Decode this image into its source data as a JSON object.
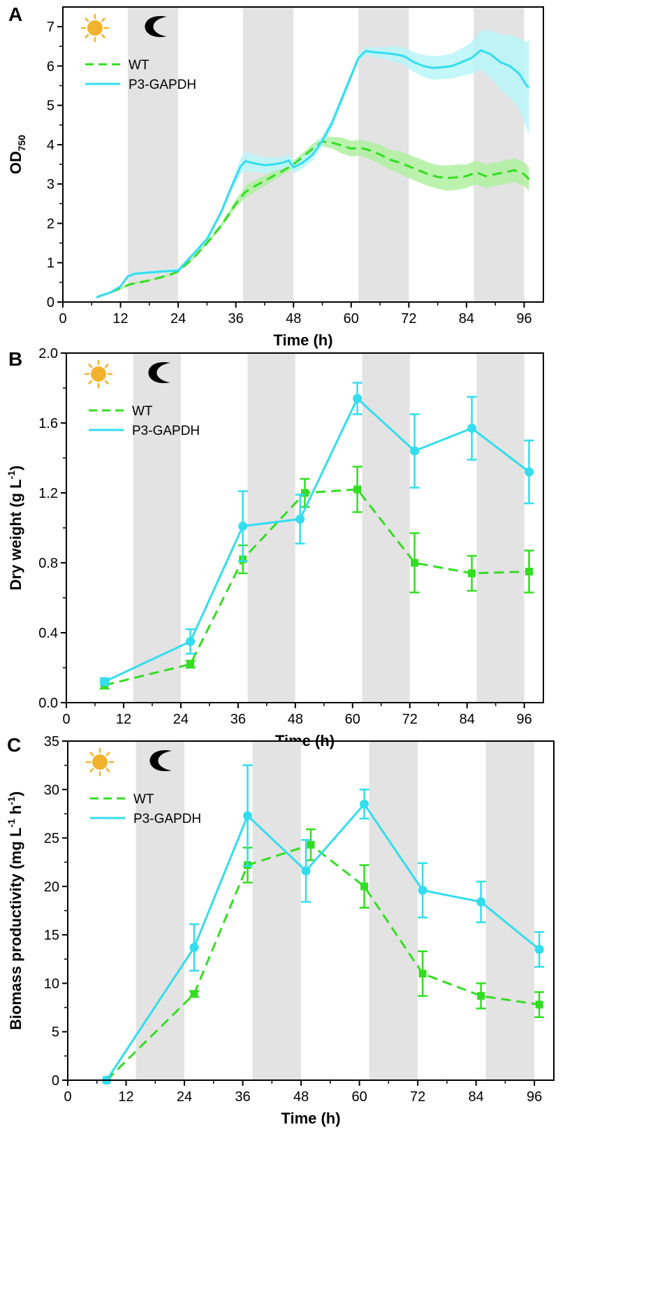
{
  "colors": {
    "wt": "#33dd22",
    "p3": "#33ddee",
    "wt_band": "#aef0a0",
    "p3_band": "#b8f6f8",
    "dark_band": "#e3e3e3",
    "sun": "#f3b22d",
    "moon": "#000000"
  },
  "chart_data": [
    {
      "panel": "A",
      "type": "line",
      "xlabel": "Time (h)",
      "ylabel": "OD",
      "ylabel_sub": "750",
      "xlim": [
        0,
        100
      ],
      "ylim": [
        0,
        7.5
      ],
      "xticks": [
        0,
        12,
        24,
        36,
        48,
        60,
        72,
        84,
        96
      ],
      "yticks": [
        0,
        1,
        2,
        3,
        4,
        5,
        6,
        7
      ],
      "dark_periods": [
        [
          13.5,
          24
        ],
        [
          37.5,
          48
        ],
        [
          61.5,
          72
        ],
        [
          85.5,
          96
        ]
      ],
      "icons": [
        "sun-icon",
        "moon-icon"
      ],
      "series": [
        {
          "name": "WT",
          "style": "dashed",
          "x": [
            7,
            10,
            14,
            18,
            22,
            24,
            27,
            30,
            33,
            36,
            38,
            40,
            43,
            46,
            48,
            50,
            52,
            54,
            56,
            58,
            60,
            62,
            64,
            66,
            68,
            70,
            72,
            74,
            76,
            78,
            80,
            82,
            84,
            86,
            88,
            90,
            92,
            94,
            96,
            97
          ],
          "y": [
            0.12,
            0.25,
            0.45,
            0.55,
            0.68,
            0.78,
            1.1,
            1.5,
            1.95,
            2.5,
            2.8,
            2.95,
            3.15,
            3.35,
            3.5,
            3.7,
            3.9,
            4.08,
            4.05,
            3.98,
            3.9,
            3.92,
            3.85,
            3.75,
            3.62,
            3.55,
            3.45,
            3.35,
            3.25,
            3.18,
            3.15,
            3.17,
            3.2,
            3.3,
            3.2,
            3.25,
            3.3,
            3.35,
            3.25,
            3.12
          ],
          "band": [
            0.03,
            0.03,
            0.03,
            0.03,
            0.03,
            0.03,
            0.04,
            0.05,
            0.06,
            0.1,
            0.15,
            0.15,
            0.12,
            0.1,
            0.1,
            0.1,
            0.12,
            0.12,
            0.15,
            0.2,
            0.2,
            0.2,
            0.22,
            0.25,
            0.25,
            0.28,
            0.3,
            0.3,
            0.3,
            0.3,
            0.32,
            0.32,
            0.3,
            0.3,
            0.3,
            0.3,
            0.3,
            0.3,
            0.3,
            0.3
          ]
        },
        {
          "name": "P3-GAPDH",
          "style": "solid",
          "x": [
            7,
            10,
            12,
            13.5,
            15,
            18,
            21,
            24,
            27,
            30,
            33,
            35,
            37,
            38,
            40,
            42,
            44,
            46,
            47,
            48,
            50,
            52,
            54,
            56,
            58,
            60,
            61.5,
            63,
            65,
            67,
            69,
            71,
            73,
            75,
            77,
            79,
            81,
            83,
            85,
            87,
            89,
            91,
            93,
            95,
            96.5,
            97
          ],
          "y": [
            0.12,
            0.25,
            0.4,
            0.65,
            0.72,
            0.75,
            0.78,
            0.8,
            1.2,
            1.6,
            2.3,
            2.9,
            3.45,
            3.58,
            3.52,
            3.48,
            3.5,
            3.55,
            3.6,
            3.42,
            3.55,
            3.75,
            4.1,
            4.55,
            5.15,
            5.75,
            6.2,
            6.38,
            6.35,
            6.33,
            6.3,
            6.25,
            6.1,
            6.0,
            5.95,
            5.97,
            6.0,
            6.1,
            6.2,
            6.4,
            6.3,
            6.1,
            6.0,
            5.8,
            5.5,
            5.45
          ],
          "band": [
            0.03,
            0.03,
            0.03,
            0.04,
            0.04,
            0.04,
            0.04,
            0.05,
            0.05,
            0.06,
            0.08,
            0.1,
            0.2,
            0.25,
            0.22,
            0.2,
            0.18,
            0.15,
            0.15,
            0.15,
            0.15,
            0.15,
            0.12,
            0.12,
            0.12,
            0.1,
            0.1,
            0.1,
            0.12,
            0.15,
            0.2,
            0.22,
            0.25,
            0.28,
            0.3,
            0.3,
            0.32,
            0.35,
            0.4,
            0.5,
            0.6,
            0.7,
            0.8,
            0.9,
            1.1,
            1.2
          ]
        }
      ]
    },
    {
      "panel": "B",
      "type": "line",
      "xlabel": "Time (h)",
      "ylabel": "Dry weight  (g L",
      "ylabel_sup": "-1",
      "ylabel_close": ")",
      "xlim": [
        0,
        100
      ],
      "ylim": [
        0,
        2.0
      ],
      "xticks": [
        0,
        12,
        24,
        36,
        48,
        60,
        72,
        84,
        96
      ],
      "yticks": [
        0.0,
        0.4,
        0.8,
        1.2,
        1.6,
        2.0
      ],
      "ytick_labels": [
        "0.0",
        "0.4",
        "0.8",
        "1.2",
        "1.6",
        "2.0"
      ],
      "dark_periods": [
        [
          14,
          24
        ],
        [
          38,
          48
        ],
        [
          62,
          72
        ],
        [
          86,
          96
        ]
      ],
      "icons": [
        "sun-icon",
        "moon-icon"
      ],
      "series": [
        {
          "name": "WT",
          "style": "dashed",
          "marker": "square",
          "x": [
            8,
            26,
            37,
            50,
            61,
            73,
            85,
            97
          ],
          "y": [
            0.1,
            0.22,
            0.82,
            1.2,
            1.22,
            0.8,
            0.74,
            0.75
          ],
          "err": [
            0.02,
            0.02,
            0.08,
            0.08,
            0.13,
            0.17,
            0.1,
            0.12
          ]
        },
        {
          "name": "P3-GAPDH",
          "style": "solid",
          "marker": "circle",
          "x": [
            8,
            26,
            37,
            49,
            61,
            73,
            85,
            97
          ],
          "y": [
            0.12,
            0.35,
            1.01,
            1.05,
            1.74,
            1.44,
            1.57,
            1.32
          ],
          "err": [
            0.02,
            0.07,
            0.2,
            0.14,
            0.09,
            0.21,
            0.18,
            0.18
          ]
        }
      ]
    },
    {
      "panel": "C",
      "type": "line",
      "xlabel": "Time (h)",
      "ylabel": "Biomass productivity  (mg L",
      "ylabel_sup1": "-1",
      "ylabel_mid": " h",
      "ylabel_sup2": "-1",
      "ylabel_close": ")",
      "xlim": [
        0,
        100
      ],
      "ylim": [
        0,
        35
      ],
      "xticks": [
        0,
        12,
        24,
        36,
        48,
        60,
        72,
        84,
        96
      ],
      "yticks": [
        0,
        5,
        10,
        15,
        20,
        25,
        30,
        35
      ],
      "dark_periods": [
        [
          14,
          24
        ],
        [
          38,
          48
        ],
        [
          62,
          72
        ],
        [
          86,
          96
        ]
      ],
      "icons": [
        "sun-icon",
        "moon-icon"
      ],
      "series": [
        {
          "name": "WT",
          "style": "dashed",
          "marker": "square",
          "x": [
            8,
            26,
            37,
            50,
            61,
            73,
            85,
            97
          ],
          "y": [
            0,
            8.9,
            22.2,
            24.3,
            20.0,
            11.0,
            8.7,
            7.8
          ],
          "err": [
            0,
            0.3,
            1.8,
            1.6,
            2.2,
            2.3,
            1.3,
            1.3
          ]
        },
        {
          "name": "P3-GAPDH",
          "style": "solid",
          "marker": "circle",
          "x": [
            8,
            26,
            37,
            49,
            61,
            73,
            85,
            97
          ],
          "y": [
            0,
            13.7,
            27.3,
            21.6,
            28.5,
            19.6,
            18.4,
            13.5
          ],
          "err": [
            0,
            2.4,
            5.2,
            3.2,
            1.5,
            2.8,
            2.1,
            1.8
          ]
        }
      ]
    }
  ]
}
